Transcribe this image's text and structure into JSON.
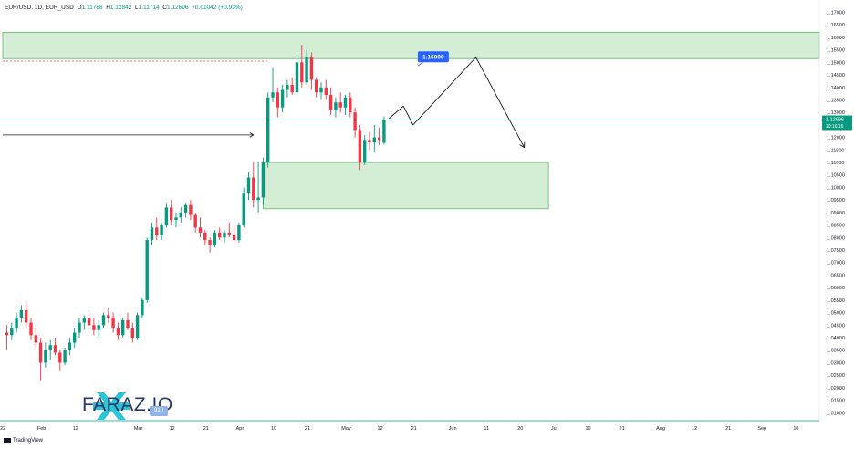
{
  "header": {
    "symbol": "EUR/USD, 1D, EUR_USD",
    "open_label": "O",
    "open": "1.11788",
    "high_label": "H",
    "high": "1.12842",
    "low_label": "L",
    "low": "1.11714",
    "close_label": "C",
    "close": "1.12696",
    "change": "+0.01042 (+0.93%)"
  },
  "branding": {
    "logo_text": "FARAZ.IO",
    "badge": "910",
    "platform": "TradingView"
  },
  "colors": {
    "bull": "#089981",
    "bear": "#f23645",
    "zone_fill": "#cdebcf",
    "zone_border": "#5fb769",
    "label_blue": "#2962ff"
  },
  "chart_data": {
    "type": "candlestick",
    "title": "",
    "ylim": [
      1.005,
      1.172
    ],
    "y_ticks": [
      "1.17000",
      "1.16500",
      "1.16000",
      "1.15500",
      "1.15000",
      "1.14500",
      "1.14000",
      "1.13500",
      "1.13000",
      "1.12500",
      "1.12000",
      "1.11500",
      "1.11000",
      "1.10500",
      "1.10000",
      "1.09500",
      "1.09000",
      "1.08500",
      "1.08000",
      "1.07500",
      "1.07000",
      "1.06500",
      "1.06000",
      "1.05500",
      "1.05000",
      "1.04500",
      "1.04000",
      "1.03500",
      "1.03000",
      "1.02500",
      "1.02000",
      "1.01500",
      "1.01000"
    ],
    "x_ticks": [
      {
        "label": "22",
        "i": -1
      },
      {
        "label": "Feb",
        "i": 7
      },
      {
        "label": "12",
        "i": 14
      },
      {
        "label": "Mar",
        "i": 27
      },
      {
        "label": "12",
        "i": 34
      },
      {
        "label": "21",
        "i": 41
      },
      {
        "label": "Apr",
        "i": 48
      },
      {
        "label": "10",
        "i": 55
      },
      {
        "label": "21",
        "i": 62
      },
      {
        "label": "May",
        "i": 70
      },
      {
        "label": "12",
        "i": 77
      },
      {
        "label": "21",
        "i": 84
      },
      {
        "label": "Jun",
        "i": 92
      },
      {
        "label": "11",
        "i": 99
      },
      {
        "label": "20",
        "i": 106
      },
      {
        "label": "Jul",
        "i": 113
      },
      {
        "label": "10",
        "i": 120
      },
      {
        "label": "21",
        "i": 127
      },
      {
        "label": "Aug",
        "i": 135
      },
      {
        "label": "12",
        "i": 142
      },
      {
        "label": "21",
        "i": 149
      },
      {
        "label": "Sep",
        "i": 156
      },
      {
        "label": "10",
        "i": 163
      }
    ],
    "candles": [
      {
        "o": 1.042,
        "h": 1.045,
        "l": 1.035,
        "c": 1.041
      },
      {
        "o": 1.041,
        "h": 1.046,
        "l": 1.039,
        "c": 1.044
      },
      {
        "o": 1.044,
        "h": 1.05,
        "l": 1.042,
        "c": 1.048
      },
      {
        "o": 1.048,
        "h": 1.053,
        "l": 1.046,
        "c": 1.051
      },
      {
        "o": 1.051,
        "h": 1.054,
        "l": 1.044,
        "c": 1.046
      },
      {
        "o": 1.046,
        "h": 1.048,
        "l": 1.039,
        "c": 1.041
      },
      {
        "o": 1.041,
        "h": 1.044,
        "l": 1.036,
        "c": 1.038
      },
      {
        "o": 1.038,
        "h": 1.04,
        "l": 1.023,
        "c": 1.03
      },
      {
        "o": 1.03,
        "h": 1.038,
        "l": 1.028,
        "c": 1.035
      },
      {
        "o": 1.035,
        "h": 1.039,
        "l": 1.031,
        "c": 1.037
      },
      {
        "o": 1.037,
        "h": 1.04,
        "l": 1.033,
        "c": 1.034
      },
      {
        "o": 1.034,
        "h": 1.035,
        "l": 1.027,
        "c": 1.03
      },
      {
        "o": 1.03,
        "h": 1.036,
        "l": 1.029,
        "c": 1.035
      },
      {
        "o": 1.035,
        "h": 1.04,
        "l": 1.033,
        "c": 1.038
      },
      {
        "o": 1.038,
        "h": 1.044,
        "l": 1.036,
        "c": 1.042
      },
      {
        "o": 1.042,
        "h": 1.048,
        "l": 1.04,
        "c": 1.046
      },
      {
        "o": 1.046,
        "h": 1.049,
        "l": 1.043,
        "c": 1.048
      },
      {
        "o": 1.048,
        "h": 1.05,
        "l": 1.044,
        "c": 1.045
      },
      {
        "o": 1.045,
        "h": 1.048,
        "l": 1.041,
        "c": 1.043
      },
      {
        "o": 1.043,
        "h": 1.047,
        "l": 1.04,
        "c": 1.045
      },
      {
        "o": 1.045,
        "h": 1.05,
        "l": 1.044,
        "c": 1.049
      },
      {
        "o": 1.049,
        "h": 1.052,
        "l": 1.046,
        "c": 1.048
      },
      {
        "o": 1.048,
        "h": 1.05,
        "l": 1.042,
        "c": 1.044
      },
      {
        "o": 1.044,
        "h": 1.046,
        "l": 1.039,
        "c": 1.041
      },
      {
        "o": 1.041,
        "h": 1.048,
        "l": 1.04,
        "c": 1.047
      },
      {
        "o": 1.047,
        "h": 1.05,
        "l": 1.043,
        "c": 1.044
      },
      {
        "o": 1.044,
        "h": 1.046,
        "l": 1.038,
        "c": 1.04
      },
      {
        "o": 1.04,
        "h": 1.05,
        "l": 1.039,
        "c": 1.049
      },
      {
        "o": 1.049,
        "h": 1.056,
        "l": 1.048,
        "c": 1.055
      },
      {
        "o": 1.055,
        "h": 1.08,
        "l": 1.054,
        "c": 1.079
      },
      {
        "o": 1.079,
        "h": 1.086,
        "l": 1.077,
        "c": 1.084
      },
      {
        "o": 1.084,
        "h": 1.088,
        "l": 1.079,
        "c": 1.081
      },
      {
        "o": 1.081,
        "h": 1.086,
        "l": 1.079,
        "c": 1.085
      },
      {
        "o": 1.085,
        "h": 1.094,
        "l": 1.084,
        "c": 1.092
      },
      {
        "o": 1.092,
        "h": 1.095,
        "l": 1.085,
        "c": 1.087
      },
      {
        "o": 1.087,
        "h": 1.09,
        "l": 1.084,
        "c": 1.088
      },
      {
        "o": 1.088,
        "h": 1.092,
        "l": 1.086,
        "c": 1.09
      },
      {
        "o": 1.09,
        "h": 1.094,
        "l": 1.088,
        "c": 1.093
      },
      {
        "o": 1.093,
        "h": 1.095,
        "l": 1.087,
        "c": 1.089
      },
      {
        "o": 1.089,
        "h": 1.09,
        "l": 1.082,
        "c": 1.084
      },
      {
        "o": 1.084,
        "h": 1.088,
        "l": 1.08,
        "c": 1.082
      },
      {
        "o": 1.082,
        "h": 1.083,
        "l": 1.077,
        "c": 1.079
      },
      {
        "o": 1.079,
        "h": 1.08,
        "l": 1.074,
        "c": 1.077
      },
      {
        "o": 1.077,
        "h": 1.083,
        "l": 1.076,
        "c": 1.082
      },
      {
        "o": 1.082,
        "h": 1.084,
        "l": 1.079,
        "c": 1.08
      },
      {
        "o": 1.08,
        "h": 1.083,
        "l": 1.078,
        "c": 1.082
      },
      {
        "o": 1.082,
        "h": 1.086,
        "l": 1.08,
        "c": 1.081
      },
      {
        "o": 1.081,
        "h": 1.085,
        "l": 1.078,
        "c": 1.079
      },
      {
        "o": 1.079,
        "h": 1.086,
        "l": 1.078,
        "c": 1.085
      },
      {
        "o": 1.085,
        "h": 1.1,
        "l": 1.084,
        "c": 1.098
      },
      {
        "o": 1.098,
        "h": 1.106,
        "l": 1.095,
        "c": 1.104
      },
      {
        "o": 1.104,
        "h": 1.11,
        "l": 1.092,
        "c": 1.095
      },
      {
        "o": 1.095,
        "h": 1.11,
        "l": 1.09,
        "c": 1.096
      },
      {
        "o": 1.096,
        "h": 1.112,
        "l": 1.093,
        "c": 1.11
      },
      {
        "o": 1.11,
        "h": 1.138,
        "l": 1.108,
        "c": 1.136
      },
      {
        "o": 1.136,
        "h": 1.148,
        "l": 1.134,
        "c": 1.138
      },
      {
        "o": 1.138,
        "h": 1.14,
        "l": 1.128,
        "c": 1.132
      },
      {
        "o": 1.132,
        "h": 1.141,
        "l": 1.13,
        "c": 1.139
      },
      {
        "o": 1.139,
        "h": 1.143,
        "l": 1.136,
        "c": 1.141
      },
      {
        "o": 1.141,
        "h": 1.144,
        "l": 1.137,
        "c": 1.138
      },
      {
        "o": 1.138,
        "h": 1.152,
        "l": 1.137,
        "c": 1.15
      },
      {
        "o": 1.15,
        "h": 1.157,
        "l": 1.14,
        "c": 1.142
      },
      {
        "o": 1.142,
        "h": 1.155,
        "l": 1.141,
        "c": 1.152
      },
      {
        "o": 1.152,
        "h": 1.154,
        "l": 1.139,
        "c": 1.143
      },
      {
        "o": 1.143,
        "h": 1.144,
        "l": 1.136,
        "c": 1.138
      },
      {
        "o": 1.138,
        "h": 1.142,
        "l": 1.135,
        "c": 1.14
      },
      {
        "o": 1.14,
        "h": 1.143,
        "l": 1.135,
        "c": 1.137
      },
      {
        "o": 1.137,
        "h": 1.14,
        "l": 1.129,
        "c": 1.131
      },
      {
        "o": 1.131,
        "h": 1.136,
        "l": 1.128,
        "c": 1.134
      },
      {
        "o": 1.134,
        "h": 1.138,
        "l": 1.13,
        "c": 1.132
      },
      {
        "o": 1.132,
        "h": 1.137,
        "l": 1.129,
        "c": 1.136
      },
      {
        "o": 1.136,
        "h": 1.138,
        "l": 1.128,
        "c": 1.13
      },
      {
        "o": 1.13,
        "h": 1.132,
        "l": 1.12,
        "c": 1.123
      },
      {
        "o": 1.123,
        "h": 1.125,
        "l": 1.107,
        "c": 1.11
      },
      {
        "o": 1.11,
        "h": 1.121,
        "l": 1.109,
        "c": 1.119
      },
      {
        "o": 1.119,
        "h": 1.122,
        "l": 1.115,
        "c": 1.118
      },
      {
        "o": 1.118,
        "h": 1.125,
        "l": 1.114,
        "c": 1.12
      },
      {
        "o": 1.12,
        "h": 1.124,
        "l": 1.117,
        "c": 1.119
      },
      {
        "o": 1.11788,
        "h": 1.12842,
        "l": 1.11714,
        "c": 1.12696
      }
    ],
    "zones": [
      {
        "y_top": 1.162,
        "y_bottom": 1.1515,
        "i_start": -3,
        "i_end": 999
      },
      {
        "y_top": 1.11,
        "y_bottom": 1.0915,
        "i_start": 53,
        "i_end": 112
      }
    ],
    "levels": [
      {
        "y": 1.1505,
        "style": "dashed",
        "color": "#f23645",
        "i_start": -3,
        "i_end": 54
      },
      {
        "y": 1.12696,
        "style": "solid",
        "color": "#089981"
      }
    ],
    "projection_path": [
      {
        "i": 79,
        "y": 1.1275
      },
      {
        "i": 82,
        "y": 1.1325
      },
      {
        "i": 84,
        "y": 1.125
      },
      {
        "i": 97,
        "y": 1.152
      },
      {
        "i": 107,
        "y": 1.116
      }
    ],
    "arrow_line": {
      "y": 1.121,
      "i_start": -3,
      "i_end": 51
    },
    "price_label": {
      "text": "1.15000",
      "i": 88,
      "y": 1.1515
    },
    "current_price_label": {
      "price": "1.12696",
      "countdown": "10:16:16"
    }
  }
}
